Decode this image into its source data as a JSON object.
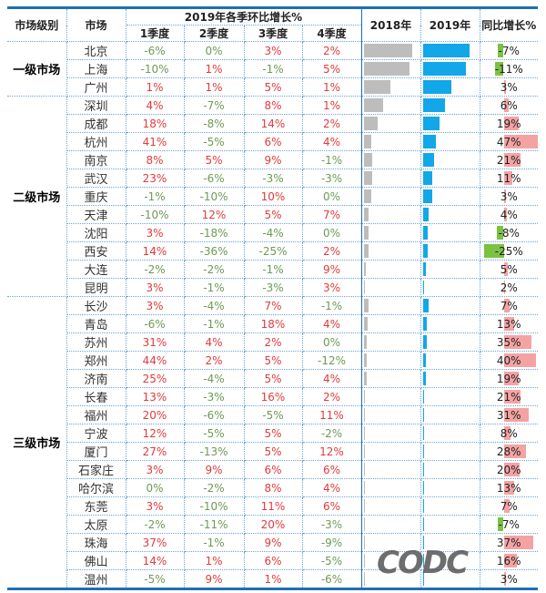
{
  "header": {
    "level": "市场级别",
    "market": "市场",
    "quarterly_group": "2019年各季环比增长%",
    "quarters": [
      "1季度",
      "2季度",
      "3季度",
      "4季度"
    ],
    "y2018": "2018年",
    "y2019": "2019年",
    "yoy": "同比增长%"
  },
  "colors": {
    "positive_text": "#e03c3c",
    "negative_text": "#6f9a55",
    "bar_2018": "#bdbdbd",
    "bar_2019": "#12a7e8",
    "yoy_positive_bar": "#f4a3a3",
    "yoy_negative_bar": "#7cc242",
    "border": "#1f6fb5"
  },
  "groups": [
    {
      "level": "一级市场",
      "rows": [
        {
          "city": "北京",
          "q": [
            "-6%",
            "0%",
            "3%",
            "2%"
          ],
          "b18": 0.88,
          "b19": 0.85,
          "yoy": "-7%",
          "yv": -7
        },
        {
          "city": "上海",
          "q": [
            "-10%",
            "1%",
            "-1%",
            "5%"
          ],
          "b18": 0.83,
          "b19": 0.78,
          "yoy": "-11%",
          "yv": -11
        },
        {
          "city": "广州",
          "q": [
            "1%",
            "1%",
            "5%",
            "1%"
          ],
          "b18": 0.48,
          "b19": 0.52,
          "yoy": "3%",
          "yv": 3
        }
      ]
    },
    {
      "level": "二级市场",
      "rows": [
        {
          "city": "深圳",
          "q": [
            "4%",
            "-7%",
            "8%",
            "1%"
          ],
          "b18": 0.36,
          "b19": 0.4,
          "yoy": "6%",
          "yv": 6
        },
        {
          "city": "成都",
          "q": [
            "18%",
            "-8%",
            "14%",
            "2%"
          ],
          "b18": 0.26,
          "b19": 0.3,
          "yoy": "19%",
          "yv": 19
        },
        {
          "city": "杭州",
          "q": [
            "41%",
            "-5%",
            "6%",
            "4%"
          ],
          "b18": 0.14,
          "b19": 0.24,
          "yoy": "47%",
          "yv": 47
        },
        {
          "city": "南京",
          "q": [
            "8%",
            "5%",
            "9%",
            "-1%"
          ],
          "b18": 0.16,
          "b19": 0.2,
          "yoy": "21%",
          "yv": 21
        },
        {
          "city": "武汉",
          "q": [
            "23%",
            "-6%",
            "-3%",
            "-3%"
          ],
          "b18": 0.16,
          "b19": 0.18,
          "yoy": "11%",
          "yv": 11
        },
        {
          "city": "重庆",
          "q": [
            "-1%",
            "-10%",
            "10%",
            "0%"
          ],
          "b18": 0.14,
          "b19": 0.17,
          "yoy": "3%",
          "yv": 3
        },
        {
          "city": "天津",
          "q": [
            "-10%",
            "12%",
            "5%",
            "7%"
          ],
          "b18": 0.09,
          "b19": 0.1,
          "yoy": "4%",
          "yv": 4
        },
        {
          "city": "沈阳",
          "q": [
            "3%",
            "-18%",
            "-4%",
            "0%"
          ],
          "b18": 0.09,
          "b19": 0.09,
          "yoy": "-8%",
          "yv": -8
        },
        {
          "city": "西安",
          "q": [
            "14%",
            "-36%",
            "-25%",
            "2%"
          ],
          "b18": 0.09,
          "b19": 0.09,
          "yoy": "-25%",
          "yv": -25
        },
        {
          "city": "大连",
          "q": [
            "-2%",
            "-2%",
            "-1%",
            "9%"
          ],
          "b18": 0.04,
          "b19": 0.05,
          "yoy": "5%",
          "yv": 5
        },
        {
          "city": "昆明",
          "q": [
            "3%",
            "-1%",
            "-3%",
            "3%"
          ],
          "b18": 0.03,
          "b19": 0.03,
          "yoy": "2%",
          "yv": 2
        }
      ]
    },
    {
      "level": "三级市场",
      "rows": [
        {
          "city": "长沙",
          "q": [
            "3%",
            "-4%",
            "7%",
            "-1%"
          ],
          "b18": 0.09,
          "b19": 0.1,
          "yoy": "7%",
          "yv": 7
        },
        {
          "city": "青岛",
          "q": [
            "-6%",
            "-1%",
            "18%",
            "4%"
          ],
          "b18": 0.07,
          "b19": 0.07,
          "yoy": "13%",
          "yv": 13
        },
        {
          "city": "苏州",
          "q": [
            "31%",
            "4%",
            "2%",
            "0%"
          ],
          "b18": 0.05,
          "b19": 0.07,
          "yoy": "35%",
          "yv": 35
        },
        {
          "city": "郑州",
          "q": [
            "44%",
            "2%",
            "5%",
            "-12%"
          ],
          "b18": 0.05,
          "b19": 0.06,
          "yoy": "40%",
          "yv": 40
        },
        {
          "city": "济南",
          "q": [
            "25%",
            "-4%",
            "5%",
            "4%"
          ],
          "b18": 0.05,
          "b19": 0.05,
          "yoy": "19%",
          "yv": 19
        },
        {
          "city": "长春",
          "q": [
            "13%",
            "-3%",
            "16%",
            "2%"
          ],
          "b18": 0.03,
          "b19": 0.03,
          "yoy": "21%",
          "yv": 21
        },
        {
          "city": "福州",
          "q": [
            "20%",
            "-6%",
            "-5%",
            "11%"
          ],
          "b18": 0.03,
          "b19": 0.03,
          "yoy": "31%",
          "yv": 31
        },
        {
          "city": "宁波",
          "q": [
            "12%",
            "-5%",
            "5%",
            "-2%"
          ],
          "b18": 0.03,
          "b19": 0.03,
          "yoy": "8%",
          "yv": 8
        },
        {
          "city": "厦门",
          "q": [
            "27%",
            "-13%",
            "5%",
            "12%"
          ],
          "b18": 0.03,
          "b19": 0.03,
          "yoy": "28%",
          "yv": 28
        },
        {
          "city": "石家庄",
          "q": [
            "3%",
            "9%",
            "6%",
            "6%"
          ],
          "b18": 0.03,
          "b19": 0.03,
          "yoy": "20%",
          "yv": 20
        },
        {
          "city": "哈尔滨",
          "q": [
            "0%",
            "-2%",
            "8%",
            "4%"
          ],
          "b18": 0.03,
          "b19": 0.03,
          "yoy": "13%",
          "yv": 13
        },
        {
          "city": "东莞",
          "q": [
            "3%",
            "-10%",
            "11%",
            "6%"
          ],
          "b18": 0.02,
          "b19": 0.03,
          "yoy": "7%",
          "yv": 7
        },
        {
          "city": "太原",
          "q": [
            "-2%",
            "-11%",
            "20%",
            "-3%"
          ],
          "b18": 0.02,
          "b19": 0.03,
          "yoy": "-7%",
          "yv": -7
        },
        {
          "city": "珠海",
          "q": [
            "37%",
            "-1%",
            "9%",
            "-9%"
          ],
          "b18": 0.02,
          "b19": 0.03,
          "yoy": "37%",
          "yv": 37
        },
        {
          "city": "佛山",
          "q": [
            "14%",
            "1%",
            "6%",
            "-5%"
          ],
          "b18": 0.02,
          "b19": 0.03,
          "yoy": "16%",
          "yv": 16
        },
        {
          "city": "温州",
          "q": [
            "-5%",
            "9%",
            "1%",
            "-6%"
          ],
          "b18": 0.02,
          "b19": 0.03,
          "yoy": "3%",
          "yv": 3
        }
      ]
    }
  ],
  "watermark": "CODC"
}
